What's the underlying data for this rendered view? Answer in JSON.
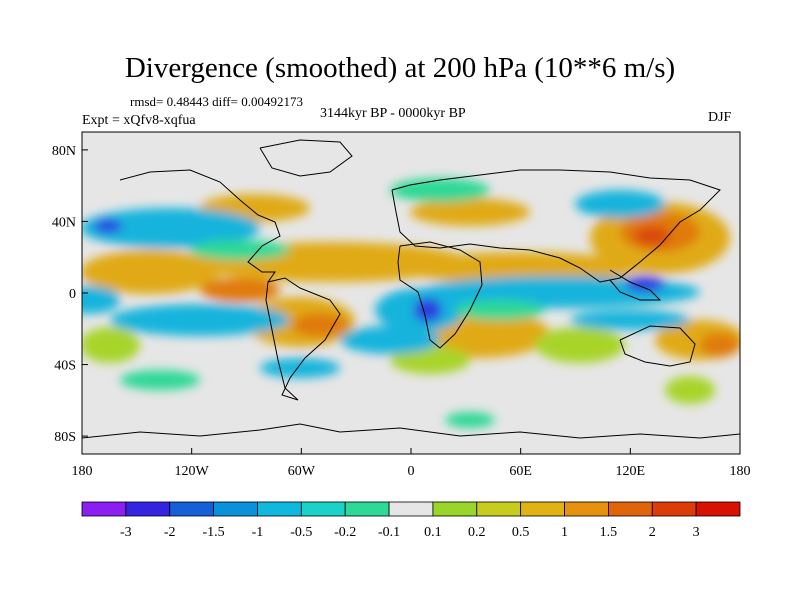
{
  "title": "Divergence (smoothed) at 200 hPa (10**6 m/s)",
  "stats": "rmsd= 0.48443 diff= 0.00492173",
  "experiment": "Expt = xQfv8-xqfua",
  "period": "3144kyr BP - 0000kyr BP",
  "season": "DJF",
  "map": {
    "lon_ticks": [
      {
        "lon": -180,
        "label": "180"
      },
      {
        "lon": -120,
        "label": "120W"
      },
      {
        "lon": -60,
        "label": "60W"
      },
      {
        "lon": 0,
        "label": "0"
      },
      {
        "lon": 60,
        "label": "60E"
      },
      {
        "lon": 120,
        "label": "120E"
      },
      {
        "lon": 180,
        "label": "180"
      }
    ],
    "lat_ticks": [
      {
        "lat": 80,
        "label": "80N"
      },
      {
        "lat": 40,
        "label": "40N"
      },
      {
        "lat": 0,
        "label": "0"
      },
      {
        "lat": -40,
        "label": "40S"
      },
      {
        "lat": -80,
        "label": "80S"
      }
    ]
  },
  "colorbar": {
    "colors": [
      "#8b1ef0",
      "#3224e0",
      "#1560d8",
      "#0b90da",
      "#10b8de",
      "#1ad2c8",
      "#2ed896",
      "#e6e6e6",
      "#9ad62a",
      "#c8cc1e",
      "#e0b214",
      "#e6920e",
      "#e0640a",
      "#dc3c08",
      "#d81200"
    ],
    "labels": [
      "-3",
      "-2",
      "-1.5",
      "-1",
      "-0.5",
      "-0.2",
      "-0.1",
      "0.1",
      "0.2",
      "0.5",
      "1",
      "1.5",
      "2",
      "3"
    ]
  },
  "colors": {
    "background": "#e6e6e6",
    "strong_negative": "#2a3ce0",
    "negative": "#12b4dc",
    "weak_negative": "#2ed896",
    "weak_positive": "#a8d42a",
    "positive": "#e0aa14",
    "strong_positive": "#e07a10",
    "peak_positive": "#dc4a08"
  }
}
